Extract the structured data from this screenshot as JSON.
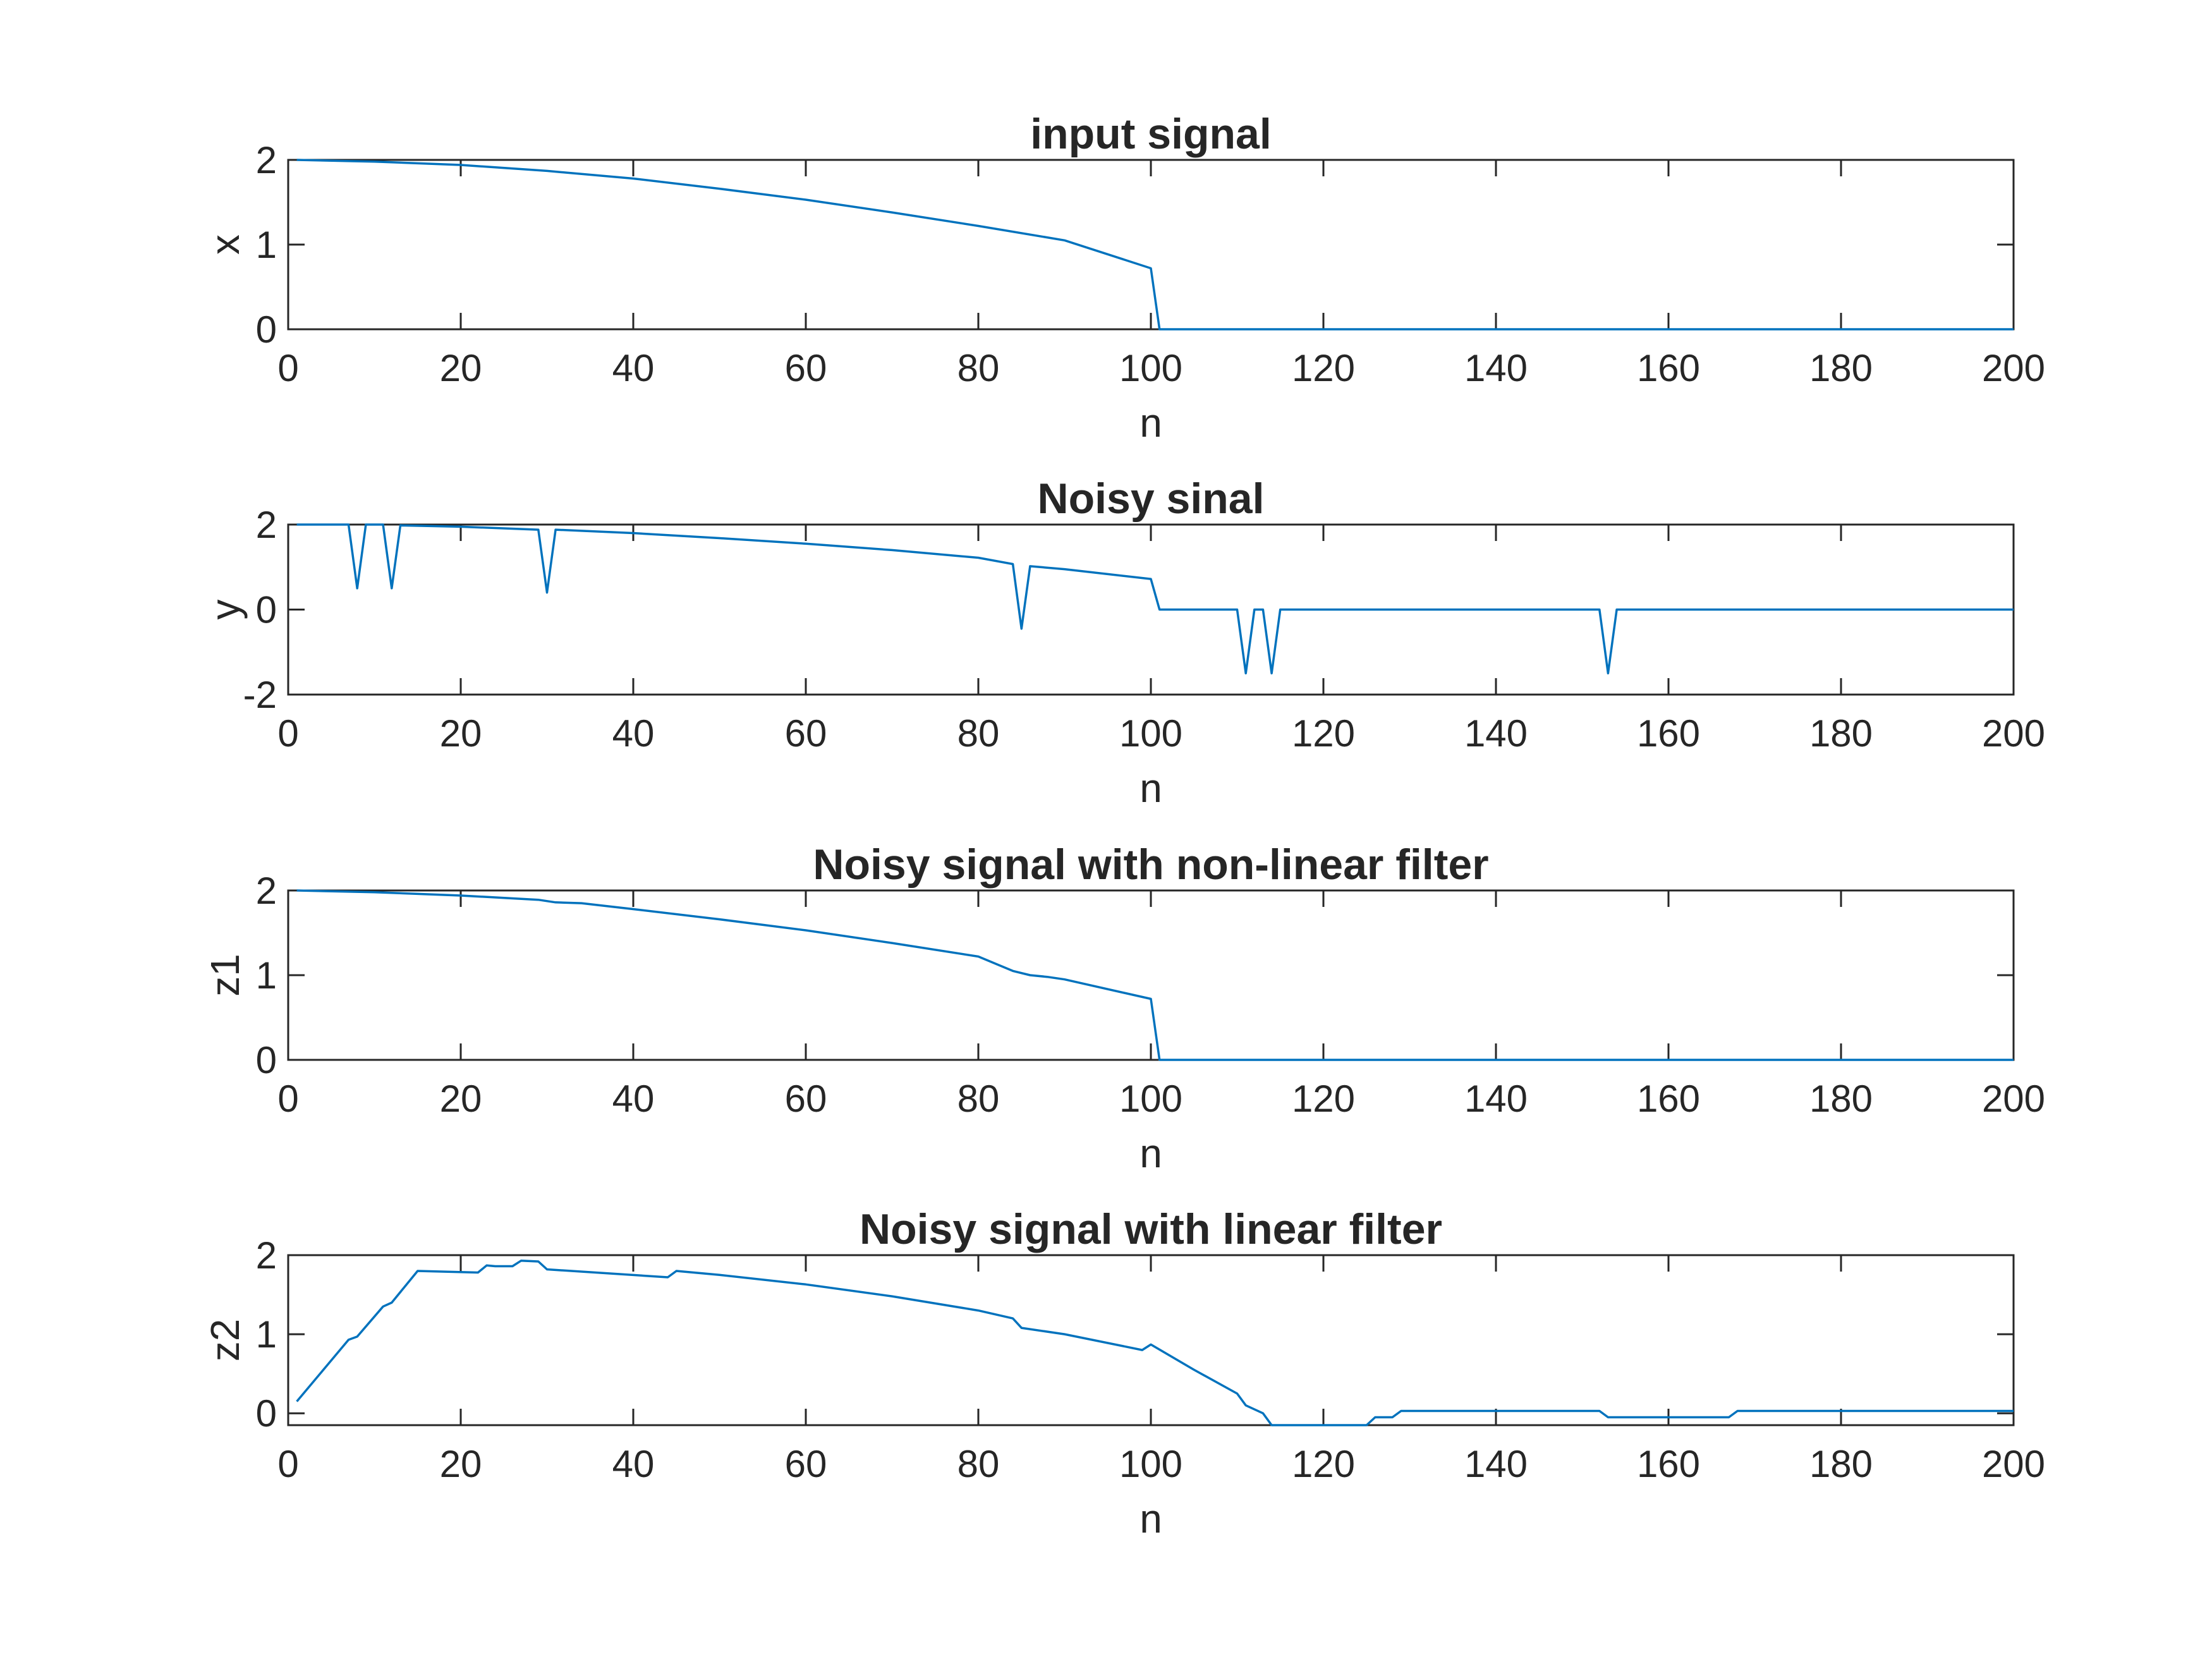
{
  "figure": {
    "background": "#ffffff",
    "line_color": "#0072BD",
    "axis_color": "#262626"
  },
  "chart_data": [
    {
      "type": "line",
      "title": "input signal",
      "xlabel": "n",
      "ylabel": "x",
      "xlim": [
        0,
        200
      ],
      "ylim": [
        0,
        2
      ],
      "xticks": [
        0,
        20,
        40,
        60,
        80,
        100,
        120,
        140,
        160,
        180,
        200
      ],
      "xtick_labels": [
        "0",
        "20",
        "40",
        "60",
        "80",
        "100",
        "120",
        "140",
        "160",
        "180",
        "200"
      ],
      "yticks": [
        0,
        1,
        2
      ],
      "ytick_labels": [
        "0",
        "1",
        "2"
      ],
      "grid": false,
      "series": [
        {
          "x": [
            1,
            10,
            20,
            30,
            40,
            50,
            60,
            70,
            80,
            90,
            100,
            101,
            110,
            120,
            130,
            140,
            150,
            160,
            170,
            180,
            190,
            200
          ],
          "y": [
            2.0,
            1.98,
            1.94,
            1.87,
            1.78,
            1.66,
            1.53,
            1.38,
            1.22,
            1.05,
            0.72,
            0,
            0,
            0,
            0,
            0,
            0,
            0,
            0,
            0,
            0,
            0
          ]
        }
      ]
    },
    {
      "type": "line",
      "title": "Noisy sinal",
      "xlabel": "n",
      "ylabel": "y",
      "xlim": [
        0,
        200
      ],
      "ylim": [
        -2,
        2
      ],
      "xticks": [
        0,
        20,
        40,
        60,
        80,
        100,
        120,
        140,
        160,
        180,
        200
      ],
      "xtick_labels": [
        "0",
        "20",
        "40",
        "60",
        "80",
        "100",
        "120",
        "140",
        "160",
        "180",
        "200"
      ],
      "yticks": [
        -2,
        0,
        2
      ],
      "ytick_labels": [
        "-2",
        "0",
        "2"
      ],
      "grid": false,
      "series": [
        {
          "x": [
            1,
            7,
            8,
            9,
            11,
            12,
            13,
            20,
            29,
            30,
            31,
            40,
            50,
            60,
            70,
            80,
            84,
            85,
            86,
            90,
            100,
            101,
            110,
            111,
            112,
            113,
            114,
            115,
            120,
            130,
            140,
            150,
            152,
            153,
            154,
            160,
            170,
            180,
            190,
            198,
            200
          ],
          "y": [
            2.0,
            2.0,
            0.5,
            2.0,
            2.0,
            0.5,
            1.98,
            1.95,
            1.88,
            0.4,
            1.88,
            1.8,
            1.68,
            1.55,
            1.4,
            1.22,
            1.07,
            -0.45,
            1.02,
            0.95,
            0.72,
            0,
            0,
            -1.5,
            0,
            0,
            -1.5,
            0,
            0,
            0,
            0,
            0,
            0,
            -1.5,
            0,
            0,
            0,
            0,
            0,
            0,
            0
          ]
        }
      ]
    },
    {
      "type": "line",
      "title": "Noisy signal with non-linear filter",
      "xlabel": "n",
      "ylabel": "z1",
      "xlim": [
        0,
        200
      ],
      "ylim": [
        0,
        2
      ],
      "xticks": [
        0,
        20,
        40,
        60,
        80,
        100,
        120,
        140,
        160,
        180,
        200
      ],
      "xtick_labels": [
        "0",
        "20",
        "40",
        "60",
        "80",
        "100",
        "120",
        "140",
        "160",
        "180",
        "200"
      ],
      "yticks": [
        0,
        1,
        2
      ],
      "ytick_labels": [
        "0",
        "1",
        "2"
      ],
      "grid": false,
      "series": [
        {
          "x": [
            1,
            10,
            20,
            29,
            31,
            34,
            40,
            50,
            60,
            70,
            80,
            84,
            86,
            88,
            90,
            100,
            101,
            110,
            120,
            130,
            140,
            150,
            160,
            170,
            180,
            190,
            200
          ],
          "y": [
            2.0,
            1.98,
            1.94,
            1.89,
            1.86,
            1.85,
            1.78,
            1.66,
            1.53,
            1.38,
            1.22,
            1.05,
            1.0,
            0.98,
            0.95,
            0.72,
            0,
            0,
            0,
            0,
            0,
            0,
            0,
            0,
            0,
            0,
            0
          ]
        }
      ]
    },
    {
      "type": "line",
      "title": "Noisy signal with linear filter",
      "xlabel": "n",
      "ylabel": "z2",
      "xlim": [
        0,
        200
      ],
      "ylim": [
        -0.15,
        2
      ],
      "xticks": [
        0,
        20,
        40,
        60,
        80,
        100,
        120,
        140,
        160,
        180,
        200
      ],
      "xtick_labels": [
        "0",
        "20",
        "40",
        "60",
        "80",
        "100",
        "120",
        "140",
        "160",
        "180",
        "200"
      ],
      "yticks": [
        0,
        1,
        2
      ],
      "ytick_labels": [
        "0",
        "1",
        "2"
      ],
      "grid": false,
      "series": [
        {
          "x": [
            1,
            7,
            8,
            11,
            12,
            15,
            22,
            23,
            24,
            26,
            27,
            29,
            30,
            44,
            45,
            50,
            60,
            70,
            80,
            84,
            85,
            90,
            99,
            100,
            105,
            110,
            111,
            113,
            114,
            115,
            120,
            125,
            126,
            128,
            129,
            140,
            150,
            152,
            153,
            160,
            167,
            168,
            170,
            180,
            190,
            200
          ],
          "y": [
            0.15,
            0.93,
            0.97,
            1.35,
            1.4,
            1.8,
            1.78,
            1.87,
            1.86,
            1.86,
            1.93,
            1.92,
            1.82,
            1.72,
            1.8,
            1.75,
            1.63,
            1.48,
            1.3,
            1.2,
            1.08,
            1.0,
            0.8,
            0.87,
            0.55,
            0.25,
            0.1,
            0.0,
            -0.15,
            -0.15,
            -0.15,
            -0.15,
            -0.05,
            -0.05,
            0.03,
            0.03,
            0.03,
            0.03,
            -0.05,
            -0.05,
            -0.05,
            0.03,
            0.03,
            0.03,
            0.03,
            0.03
          ]
        }
      ]
    }
  ]
}
